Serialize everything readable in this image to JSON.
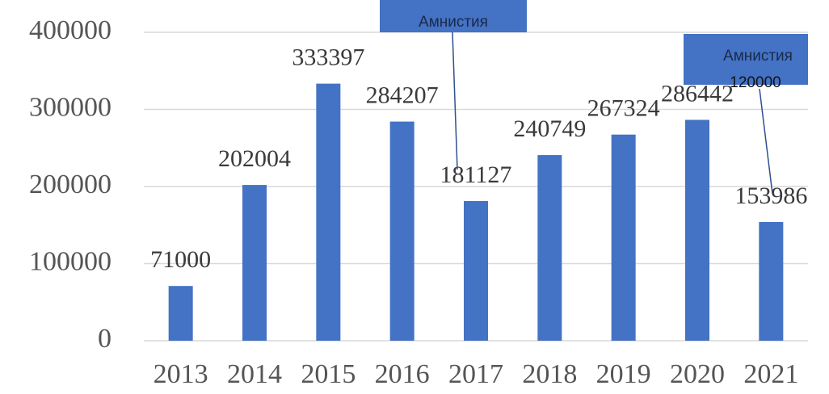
{
  "chart_data": {
    "type": "bar",
    "categories": [
      "2013",
      "2014",
      "2015",
      "2016",
      "2017",
      "2018",
      "2019",
      "2020",
      "2021"
    ],
    "values": [
      71000,
      202004,
      333397,
      284207,
      181127,
      240749,
      267324,
      286442,
      153986
    ],
    "color": "#4472c4",
    "ylim": [
      0,
      400000
    ],
    "yticks": [
      0,
      100000,
      200000,
      300000,
      400000
    ],
    "grid": true,
    "annotations": [
      {
        "text": "Амнистия"
      },
      {
        "text": "Амнистия",
        "value": 120000
      }
    ]
  }
}
